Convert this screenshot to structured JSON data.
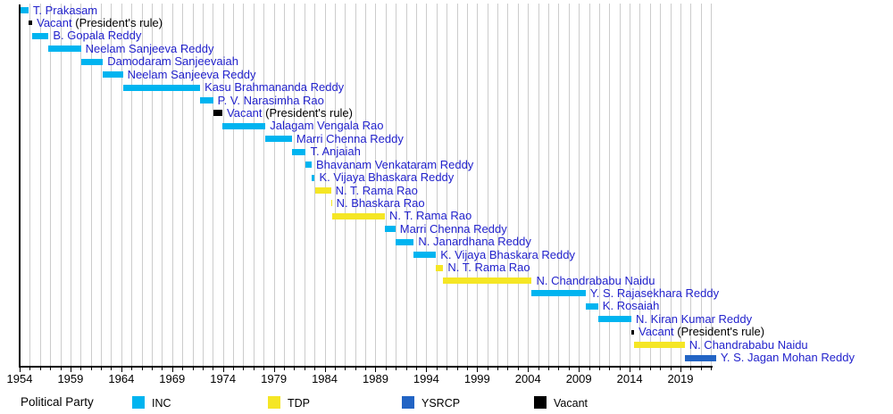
{
  "colors": {
    "name_text": "#2222cc",
    "note_text": "#000000",
    "grid": "#cccccc",
    "axis": "#000000",
    "background": "#ffffff"
  },
  "chart_data": {
    "type": "timeline",
    "title": "",
    "description": "Timeline of Chief Ministers terms colored by political party",
    "x_axis": {
      "start_year": 1954,
      "end_year": 2022,
      "major_tick_years": [
        1954,
        1959,
        1964,
        1969,
        1974,
        1979,
        1984,
        1989,
        1994,
        1999,
        2004,
        2009,
        2014,
        2019
      ],
      "minor_tick_interval_years": 1,
      "grid": true
    },
    "legend": {
      "title": "Political Party",
      "items": [
        {
          "id": "INC",
          "label": "INC",
          "color": "#00b4f0"
        },
        {
          "id": "TDP",
          "label": "TDP",
          "color": "#f5e625"
        },
        {
          "id": "YSRCP",
          "label": "YSRCP",
          "color": "#2264c4"
        },
        {
          "id": "Vacant",
          "label": "Vacant",
          "color": "#000000"
        }
      ]
    },
    "rows": [
      {
        "name": "T. Prakasam",
        "party": "INC",
        "start": 1954.0,
        "end": 1954.87
      },
      {
        "name": "Vacant",
        "note": "(President's rule)",
        "party": "Vacant",
        "start": 1954.87,
        "end": 1955.24
      },
      {
        "name": "B. Gopala Reddy",
        "party": "INC",
        "start": 1955.24,
        "end": 1956.84
      },
      {
        "name": "Neelam Sanjeeva Reddy",
        "party": "INC",
        "start": 1956.84,
        "end": 1960.03
      },
      {
        "name": "Damodaram Sanjeevaiah",
        "party": "INC",
        "start": 1960.03,
        "end": 1962.19
      },
      {
        "name": "Neelam Sanjeeva Reddy",
        "party": "INC",
        "start": 1962.19,
        "end": 1964.16
      },
      {
        "name": "Kasu Brahmananda Reddy",
        "party": "INC",
        "start": 1964.16,
        "end": 1971.75
      },
      {
        "name": "P. V. Narasimha Rao",
        "party": "INC",
        "start": 1971.75,
        "end": 1973.03
      },
      {
        "name": "Vacant",
        "note": "(President's rule)",
        "party": "Vacant",
        "start": 1973.03,
        "end": 1973.94
      },
      {
        "name": "Jalagam Vengala Rao",
        "party": "INC",
        "start": 1973.94,
        "end": 1978.18
      },
      {
        "name": "Marri Chenna Reddy",
        "party": "INC",
        "start": 1978.18,
        "end": 1980.78
      },
      {
        "name": "T. Anjaiah",
        "party": "INC",
        "start": 1980.78,
        "end": 1982.15
      },
      {
        "name": "Bhavanam Venkataram Reddy",
        "party": "INC",
        "start": 1982.15,
        "end": 1982.72
      },
      {
        "name": "K. Vijaya Bhaskara Reddy",
        "party": "INC",
        "start": 1982.72,
        "end": 1983.03
      },
      {
        "name": "N. T. Rama Rao",
        "party": "TDP",
        "start": 1983.03,
        "end": 1984.62
      },
      {
        "name": "N. Bhaskara Rao",
        "party": "TDP",
        "start": 1984.62,
        "end": 1984.71
      },
      {
        "name": "N. T. Rama Rao",
        "party": "TDP",
        "start": 1984.71,
        "end": 1989.92
      },
      {
        "name": "Marri Chenna Reddy",
        "party": "INC",
        "start": 1989.92,
        "end": 1990.96
      },
      {
        "name": "N. Janardhana Reddy",
        "party": "INC",
        "start": 1990.96,
        "end": 1992.77
      },
      {
        "name": "K. Vijaya Bhaskara Reddy",
        "party": "INC",
        "start": 1992.77,
        "end": 1994.95
      },
      {
        "name": "N. T. Rama Rao",
        "party": "TDP",
        "start": 1994.95,
        "end": 1995.67
      },
      {
        "name": "N. Chandrababu Naidu",
        "party": "TDP",
        "start": 1995.67,
        "end": 2004.37
      },
      {
        "name": "Y. S. Rajasekhara Reddy",
        "party": "INC",
        "start": 2004.37,
        "end": 2009.67
      },
      {
        "name": "K. Rosaiah",
        "party": "INC",
        "start": 2009.67,
        "end": 2010.9
      },
      {
        "name": "N. Kiran Kumar Reddy",
        "party": "INC",
        "start": 2010.9,
        "end": 2014.17
      },
      {
        "name": "Vacant",
        "note": "(President's rule)",
        "party": "Vacant",
        "start": 2014.17,
        "end": 2014.44
      },
      {
        "name": "N. Chandrababu Naidu",
        "party": "TDP",
        "start": 2014.44,
        "end": 2019.41
      },
      {
        "name": "Y. S. Jagan Mohan Reddy",
        "party": "YSRCP",
        "start": 2019.41,
        "end": 2022.5
      }
    ]
  }
}
